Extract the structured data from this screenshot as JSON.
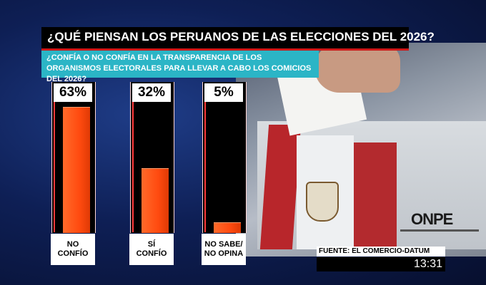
{
  "title": "¿QUÉ PIENSAN LOS PERUANOS DE LAS ELECCIONES DEL 2026?",
  "question": "¿CONFÍA O NO CONFÍA EN LA TRANSPARENCIA DE LOS ORGANISMOS ELECTORALES PARA LLEVAR A CABO LOS COMICIOS DEL 2026?",
  "source": "FUENTE: EL COMERCIO-DATUM",
  "clock": "13:31",
  "logo_text": "ONPE",
  "colors": {
    "bar": "#ff5a1e",
    "question_bg": "#2bb5c6",
    "accent": "#d01818"
  },
  "chart_data": {
    "type": "bar",
    "categories": [
      "NO\nCONFÍO",
      "SÍ\nCONFÍO",
      "NO SABE/\nNO OPINA"
    ],
    "values": [
      63,
      32,
      5
    ],
    "value_labels": [
      "63%",
      "32%",
      "5%"
    ],
    "ylim": [
      0,
      100
    ],
    "title": "¿QUÉ PIENSAN LOS PERUANOS DE LAS ELECCIONES DEL 2026?",
    "grid": false
  }
}
